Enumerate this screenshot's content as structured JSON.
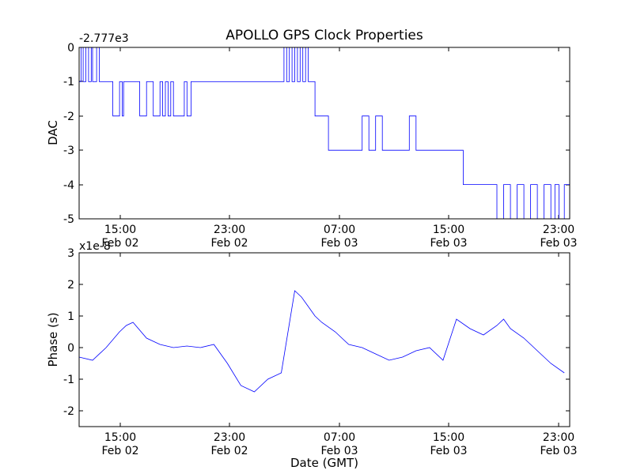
{
  "chart_data": [
    {
      "type": "line",
      "title": "APOLLO GPS Clock Properties",
      "ylabel": "DAC",
      "offset_label": "-2.777e3",
      "ylim": [
        -5,
        0
      ],
      "yticks": [
        "0",
        "-1",
        "-2",
        "-3",
        "-4",
        "-5"
      ],
      "xticks": [
        {
          "time": "15:00",
          "date": "Feb 02"
        },
        {
          "time": "23:00",
          "date": "Feb 02"
        },
        {
          "time": "07:00",
          "date": "Feb 03"
        },
        {
          "time": "15:00",
          "date": "Feb 03"
        },
        {
          "time": "23:00",
          "date": "Feb 03"
        }
      ],
      "color": "#0000ff",
      "series": [
        {
          "x_hours": [
            0,
            0.15,
            0.3,
            0.5,
            0.7,
            0.9,
            1,
            1.2,
            1.3,
            1.5,
            1.7,
            2,
            2.5,
            3,
            3.2,
            3.3,
            3.5,
            4,
            4.5,
            5,
            5.5,
            6,
            6.2,
            6.4,
            6.6,
            6.8,
            7,
            7.2,
            7.5,
            7.8,
            8,
            8.3,
            8.6,
            9,
            9.5,
            10,
            10.5,
            11,
            11.5,
            12,
            12.5,
            13,
            13.5,
            14,
            14.3,
            14.6,
            15,
            15.2,
            15.4,
            15.6,
            15.8,
            16,
            16.2,
            16.4,
            16.6,
            16.8,
            17,
            17.2,
            17.5,
            18,
            18.5,
            19,
            19.5,
            20,
            20.5,
            21,
            21.5,
            22,
            22.5,
            23,
            23.5,
            24,
            24.5,
            25,
            25.5,
            26,
            26.5,
            27,
            27.5,
            28,
            28.5,
            29,
            29.5,
            30,
            30.5,
            31,
            31.5,
            32,
            32.5,
            33,
            33.5,
            34,
            34.5,
            35,
            35.3,
            35.6,
            36
          ],
          "values": [
            -1,
            0,
            -1,
            0,
            -1,
            0,
            -1,
            -1,
            0,
            -1,
            -1,
            -1,
            -2,
            -1,
            -2,
            -1,
            -1,
            -1,
            -2,
            -1,
            -2,
            -1,
            -2,
            -1,
            -2,
            -1,
            -2,
            -2,
            -2,
            -1,
            -2,
            -1,
            -1,
            -1,
            -1,
            -1,
            -1,
            -1,
            -1,
            -1,
            -1,
            -1,
            -1,
            -1,
            -1,
            -1,
            -1,
            0,
            -1,
            0,
            -1,
            0,
            -1,
            0,
            -1,
            0,
            -1,
            -1,
            -2,
            -2,
            -3,
            -3,
            -3,
            -3,
            -3,
            -2,
            -3,
            -2,
            -3,
            -3,
            -3,
            -3,
            -2,
            -3,
            -3,
            -3,
            -3,
            -3,
            -3,
            -3,
            -4,
            -4,
            -4,
            -4,
            -4,
            -5,
            -4,
            -5,
            -4,
            -5,
            -4,
            -5,
            -4,
            -5,
            -4,
            -5,
            -4
          ]
        }
      ]
    },
    {
      "type": "line",
      "ylabel": "Phase (s)",
      "xlabel": "Date (GMT)",
      "offset_label": "x1e-8",
      "ylim": [
        -2.5,
        3
      ],
      "yticks": [
        "3",
        "2",
        "1",
        "0",
        "-1",
        "-2"
      ],
      "xticks": [
        {
          "time": "15:00",
          "date": "Feb 02"
        },
        {
          "time": "23:00",
          "date": "Feb 02"
        },
        {
          "time": "07:00",
          "date": "Feb 03"
        },
        {
          "time": "15:00",
          "date": "Feb 03"
        },
        {
          "time": "23:00",
          "date": "Feb 03"
        }
      ],
      "color": "#0000ff",
      "series": [
        {
          "x_hours": [
            0,
            1,
            2,
            3,
            3.5,
            4,
            5,
            6,
            7,
            8,
            9,
            10,
            11,
            12,
            13,
            14,
            15,
            16,
            16.5,
            17,
            17.5,
            18,
            19,
            20,
            21,
            22,
            23,
            24,
            25,
            26,
            27,
            28,
            29,
            30,
            31,
            31.5,
            32,
            33,
            34,
            35,
            36
          ],
          "values": [
            -0.3,
            -0.4,
            0,
            0.5,
            0.7,
            0.8,
            0.3,
            0.1,
            0,
            0.05,
            0,
            0.1,
            -0.5,
            -1.2,
            -1.4,
            -1,
            -0.8,
            1.8,
            1.6,
            1.3,
            1,
            0.8,
            0.5,
            0.1,
            0,
            -0.2,
            -0.4,
            -0.3,
            -0.1,
            0,
            -0.4,
            0.9,
            0.6,
            0.4,
            0.7,
            0.9,
            0.6,
            0.3,
            -0.1,
            -0.5,
            -0.8
          ]
        }
      ]
    }
  ]
}
